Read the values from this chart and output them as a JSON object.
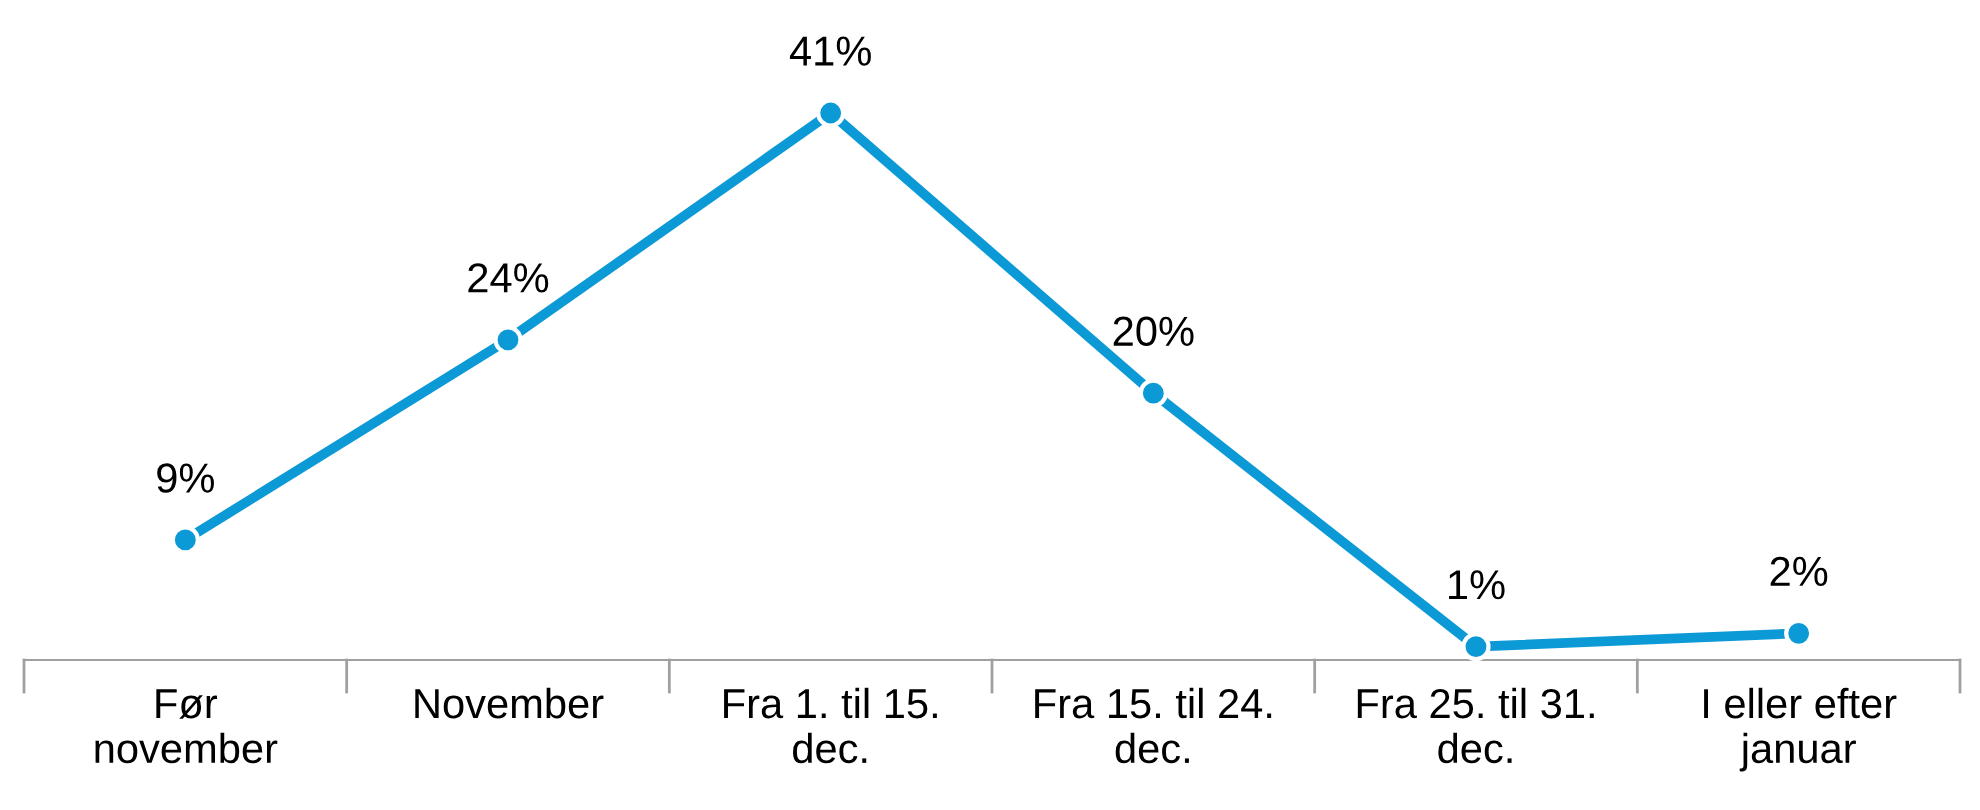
{
  "chart_data": {
    "type": "line",
    "categories": [
      "Før\nnovember",
      "November",
      "Fra 1. til 15.\ndec.",
      "Fra 15. til 24.\ndec.",
      "Fra 25. til 31.\ndec.",
      "I eller efter\njanuar"
    ],
    "values": [
      9,
      24,
      41,
      20,
      1,
      2
    ],
    "value_labels": [
      "9%",
      "24%",
      "41%",
      "20%",
      "1%",
      "2%"
    ],
    "color": "#0c9ad7",
    "marker": "circle",
    "line_style": "solid",
    "tick_labels": "x",
    "grid": false,
    "legend": false
  }
}
